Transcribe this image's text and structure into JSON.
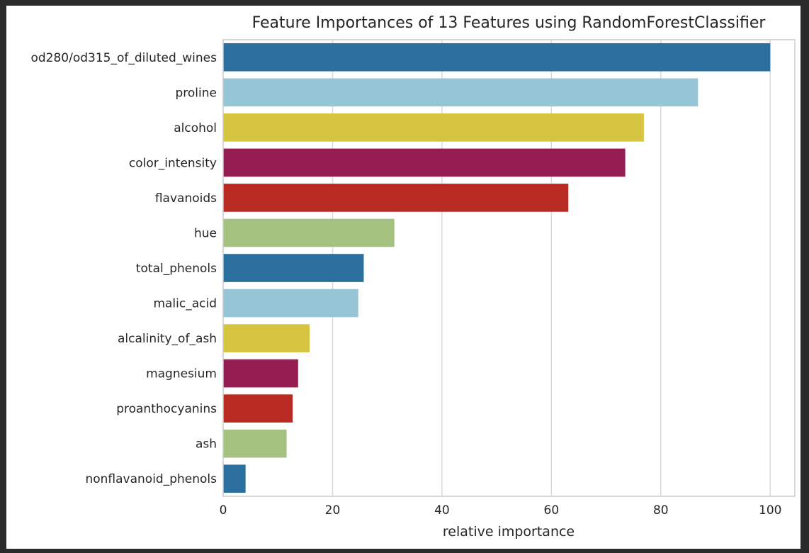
{
  "chart_data": {
    "type": "bar",
    "orientation": "horizontal",
    "title": "Feature Importances of 13 Features using RandomForestClassifier",
    "xlabel": "relative importance",
    "ylabel": "",
    "xlim": [
      0,
      104.5
    ],
    "xticks": [
      0,
      20,
      40,
      60,
      80,
      100
    ],
    "grid": true,
    "categories": [
      "od280/od315_of_diluted_wines",
      "proline",
      "alcohol",
      "color_intensity",
      "flavanoids",
      "hue",
      "total_phenols",
      "malic_acid",
      "alcalinity_of_ash",
      "magnesium",
      "proanthocyanins",
      "ash",
      "nonflavanoid_phenols"
    ],
    "values": [
      100,
      86.8,
      76.9,
      73.5,
      63.1,
      31.3,
      25.7,
      24.7,
      15.8,
      13.7,
      12.7,
      11.6,
      4.1
    ],
    "colors": [
      "#2a6f9e",
      "#96c6d6",
      "#d4c440",
      "#961d52",
      "#b92b22",
      "#a5c180",
      "#2a6f9e",
      "#96c6d6",
      "#d4c440",
      "#961d52",
      "#b92b22",
      "#a5c180",
      "#2a6f9e"
    ]
  }
}
